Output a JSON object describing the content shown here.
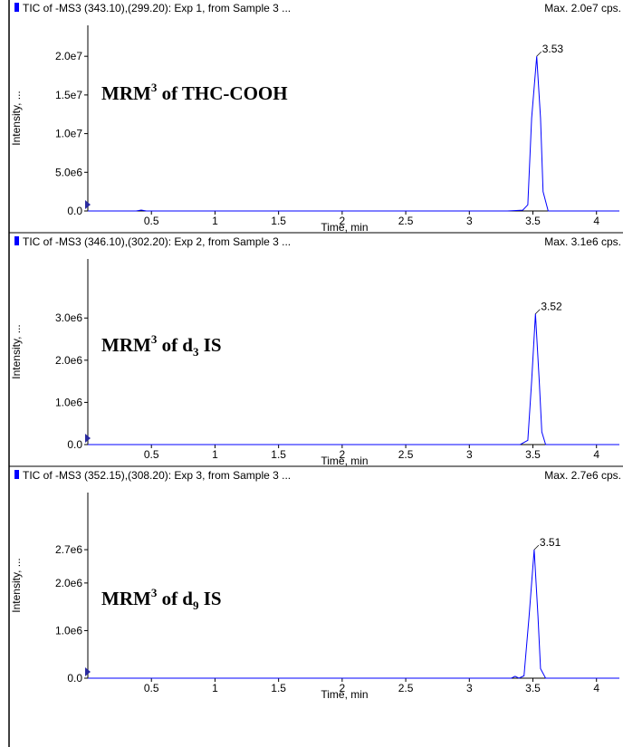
{
  "chart_data": [
    {
      "type": "line",
      "header": "TIC of -MS3 (343.10),(299.20): Exp 1, from Sample 3 ...",
      "max_label": "Max. 2.0e7 cps.",
      "label_parts": [
        {
          "text": "MRM"
        },
        {
          "text": "3",
          "style": "sup"
        },
        {
          "text": " of THC-COOH"
        }
      ],
      "x_label": "Time, min",
      "y_label": "Intensity, ...",
      "xlim": [
        0,
        4.18
      ],
      "xticks": [
        0.5,
        1.0,
        1.5,
        2.0,
        2.5,
        3.0,
        3.5,
        4.0
      ],
      "ylim": [
        0,
        24000000
      ],
      "yticks": [
        {
          "value": 0,
          "label": "0.0"
        },
        {
          "value": 5000000,
          "label": "5.0e6"
        },
        {
          "value": 10000000,
          "label": "1.0e7"
        },
        {
          "value": 15000000,
          "label": "1.5e7"
        },
        {
          "value": 20000000,
          "label": "2.0e7"
        }
      ],
      "series": [
        {
          "color": "#0000ff",
          "x": [
            0,
            0.38,
            0.42,
            0.46,
            3.3,
            3.42,
            3.46,
            3.49,
            3.53,
            3.56,
            3.58,
            3.62,
            4.18
          ],
          "values": [
            0,
            0,
            120000,
            0,
            0,
            100000,
            800000,
            12000000,
            20000000,
            12000000,
            2500000,
            0,
            0
          ]
        }
      ],
      "peak": {
        "x": 3.53,
        "y": 20000000
      }
    },
    {
      "type": "line",
      "header": "TIC of -MS3 (346.10),(302.20): Exp 2, from Sample 3 ...",
      "max_label": "Max. 3.1e6 cps.",
      "label_parts": [
        {
          "text": "MRM"
        },
        {
          "text": "3",
          "style": "sup"
        },
        {
          "text": " of d"
        },
        {
          "text": "3",
          "style": "sub"
        },
        {
          "text": " IS"
        }
      ],
      "x_label": "Time, min",
      "y_label": "Intensity, ...",
      "xlim": [
        0,
        4.18
      ],
      "xticks": [
        0.5,
        1.0,
        1.5,
        2.0,
        2.5,
        3.0,
        3.5,
        4.0
      ],
      "ylim": [
        0,
        4400000
      ],
      "yticks": [
        {
          "value": 0,
          "label": "0.0"
        },
        {
          "value": 1000000,
          "label": "1.0e6"
        },
        {
          "value": 2000000,
          "label": "2.0e6"
        },
        {
          "value": 3000000,
          "label": "3.0e6"
        }
      ],
      "series": [
        {
          "color": "#0000ff",
          "x": [
            0,
            3.4,
            3.46,
            3.49,
            3.52,
            3.55,
            3.57,
            3.6,
            4.18
          ],
          "values": [
            0,
            0,
            100000,
            1500000,
            3100000,
            1500000,
            300000,
            0,
            0
          ]
        }
      ],
      "peak": {
        "x": 3.52,
        "y": 3100000
      }
    },
    {
      "type": "line",
      "header": "TIC of -MS3 (352.15),(308.20): Exp 3, from Sample 3 ...",
      "max_label": "Max. 2.7e6 cps.",
      "label_parts": [
        {
          "text": "MRM"
        },
        {
          "text": "3",
          "style": "sup"
        },
        {
          "text": " of d"
        },
        {
          "text": "9",
          "style": "sub"
        },
        {
          "text": " IS"
        }
      ],
      "x_label": "Time, min",
      "y_label": "Intensity, ...",
      "xlim": [
        0,
        4.18
      ],
      "xticks": [
        0.5,
        1.0,
        1.5,
        2.0,
        2.5,
        3.0,
        3.5,
        4.0
      ],
      "ylim": [
        0,
        3900000
      ],
      "yticks": [
        {
          "value": 0,
          "label": "0.0"
        },
        {
          "value": 1000000,
          "label": "1.0e6"
        },
        {
          "value": 2000000,
          "label": "2.0e6"
        },
        {
          "value": 2700000,
          "label": "2.7e6"
        }
      ],
      "series": [
        {
          "color": "#0000ff",
          "x": [
            0,
            3.33,
            3.36,
            3.39,
            3.43,
            3.47,
            3.51,
            3.54,
            3.56,
            3.6,
            4.18
          ],
          "values": [
            0,
            0,
            40000,
            0,
            50000,
            1300000,
            2700000,
            1300000,
            200000,
            0,
            0
          ]
        }
      ],
      "peak": {
        "x": 3.51,
        "y": 2700000
      }
    }
  ]
}
